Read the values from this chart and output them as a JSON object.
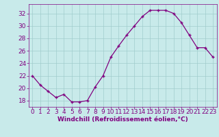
{
  "x": [
    0,
    1,
    2,
    3,
    4,
    5,
    6,
    7,
    8,
    9,
    10,
    11,
    12,
    13,
    14,
    15,
    16,
    17,
    18,
    19,
    20,
    21,
    22,
    23
  ],
  "y": [
    22,
    20.5,
    19.5,
    18.5,
    19,
    17.8,
    17.8,
    18,
    20.2,
    22,
    25,
    26.8,
    28.5,
    30,
    31.5,
    32.5,
    32.5,
    32.5,
    32,
    30.5,
    28.5,
    26.5,
    26.5,
    25
  ],
  "line_color": "#800080",
  "marker": "+",
  "bg_color": "#c8eaea",
  "grid_color": "#a0cccc",
  "xlabel": "Windchill (Refroidissement éolien,°C)",
  "ylim": [
    17.0,
    33.5
  ],
  "xlim": [
    -0.5,
    23.5
  ],
  "yticks": [
    18,
    20,
    22,
    24,
    26,
    28,
    30,
    32
  ],
  "xticks": [
    0,
    1,
    2,
    3,
    4,
    5,
    6,
    7,
    8,
    9,
    10,
    11,
    12,
    13,
    14,
    15,
    16,
    17,
    18,
    19,
    20,
    21,
    22,
    23
  ],
  "label_color": "#800080",
  "tick_color": "#800080",
  "font_size": 6.5,
  "xlabel_fontsize": 6.5,
  "marker_size": 3,
  "linewidth": 0.9
}
